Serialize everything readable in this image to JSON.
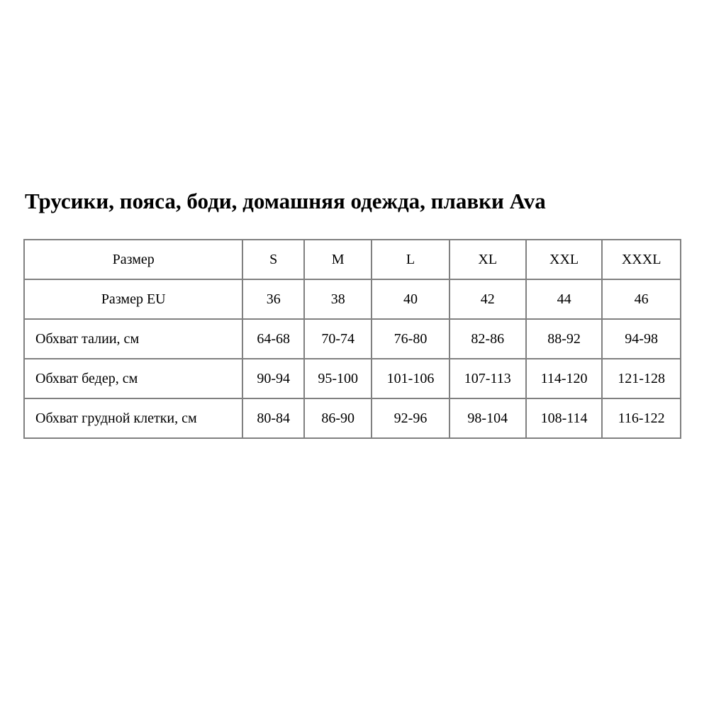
{
  "title": "Трусики, пояса, боди, домашняя одежда, плавки Ava",
  "table": {
    "rows": [
      {
        "label": "Размер",
        "values": [
          "S",
          "M",
          "L",
          "XL",
          "XXL",
          "XXXL"
        ]
      },
      {
        "label": "Размер EU",
        "values": [
          "36",
          "38",
          "40",
          "42",
          "44",
          "46"
        ]
      },
      {
        "label": "Обхват талии, см",
        "values": [
          "64-68",
          "70-74",
          "76-80",
          "82-86",
          "88-92",
          "94-98"
        ]
      },
      {
        "label": "Обхват бедер, см",
        "values": [
          "90-94",
          "95-100",
          "101-106",
          "107-113",
          "114-120",
          "121-128"
        ]
      },
      {
        "label": "Обхват грудной клетки, см",
        "values": [
          "80-84",
          "86-90",
          "92-96",
          "98-104",
          "108-114",
          "116-122"
        ]
      }
    ]
  }
}
